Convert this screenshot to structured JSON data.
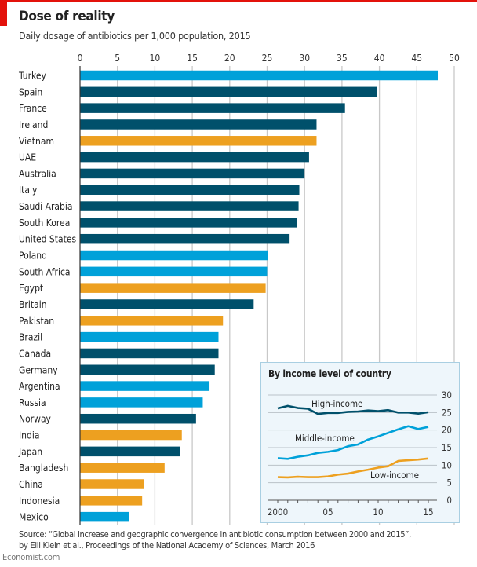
{
  "title": "Dose of reality",
  "subtitle": "Daily dosage of antibiotics per 1,000 population, 2015",
  "source_line1": "Source: “Global increase and geographic convergence in antibiotic consumption between 2000 and 2015”,",
  "source_line2": "by Eili Klein et al., Proceedings of the National Academy of Sciences, March 2016",
  "brand": "Economist.com",
  "colors": {
    "high_income": "#00506b",
    "middle_income": "#00a1d9",
    "low_income": "#eda020",
    "accent": "#e3120b"
  },
  "chart_data": [
    {
      "type": "bar",
      "orientation": "horizontal",
      "grid": true,
      "xlim": [
        0,
        50
      ],
      "xticks": [
        0,
        5,
        10,
        15,
        20,
        25,
        30,
        35,
        40,
        45,
        50
      ],
      "categories": [
        "Turkey",
        "Spain",
        "France",
        "Ireland",
        "Vietnam",
        "UAE",
        "Australia",
        "Italy",
        "Saudi Arabia",
        "South Korea",
        "United States",
        "Poland",
        "South Africa",
        "Egypt",
        "Britain",
        "Pakistan",
        "Brazil",
        "Canada",
        "Germany",
        "Argentina",
        "Russia",
        "Norway",
        "India",
        "Japan",
        "Bangladesh",
        "China",
        "Indonesia",
        "Mexico"
      ],
      "values": [
        47.8,
        39.7,
        35.4,
        31.6,
        31.6,
        30.6,
        30.0,
        29.3,
        29.2,
        29.0,
        28.0,
        25.1,
        25.0,
        24.8,
        23.2,
        19.1,
        18.5,
        18.5,
        18.0,
        17.3,
        16.4,
        15.5,
        13.6,
        13.4,
        11.3,
        8.5,
        8.3,
        6.5
      ],
      "income_group": [
        "middle",
        "high",
        "high",
        "high",
        "low",
        "high",
        "high",
        "high",
        "high",
        "high",
        "high",
        "middle",
        "middle",
        "low",
        "high",
        "low",
        "middle",
        "high",
        "high",
        "middle",
        "middle",
        "high",
        "low",
        "high",
        "low",
        "low",
        "low",
        "middle"
      ]
    },
    {
      "type": "line",
      "title": "By income level of country",
      "x": [
        2000,
        2001,
        2002,
        2003,
        2004,
        2005,
        2006,
        2007,
        2008,
        2009,
        2010,
        2011,
        2012,
        2013,
        2014,
        2015
      ],
      "xticks": [
        "2000",
        "05",
        "10",
        "15"
      ],
      "xtick_values": [
        2000,
        2005,
        2010,
        2015
      ],
      "ylim": [
        0,
        30
      ],
      "yticks": [
        0,
        5,
        10,
        15,
        20,
        25,
        30
      ],
      "grid": true,
      "series": [
        {
          "name": "High-income",
          "color": "#00506b",
          "values": [
            26.2,
            26.9,
            26.3,
            26.1,
            24.6,
            24.9,
            24.9,
            25.2,
            25.3,
            25.6,
            25.4,
            25.7,
            25.0,
            25.0,
            24.7,
            25.1
          ]
        },
        {
          "name": "Middle-income",
          "color": "#00a1d9",
          "values": [
            12.0,
            11.8,
            12.4,
            12.8,
            13.5,
            13.8,
            14.3,
            15.4,
            15.9,
            17.3,
            18.2,
            19.2,
            20.2,
            21.1,
            20.3,
            20.9
          ]
        },
        {
          "name": "Low-income",
          "color": "#eda020",
          "values": [
            6.6,
            6.5,
            6.7,
            6.6,
            6.6,
            6.8,
            7.3,
            7.6,
            8.2,
            8.7,
            9.3,
            9.7,
            11.2,
            11.4,
            11.6,
            11.9
          ]
        }
      ]
    }
  ]
}
